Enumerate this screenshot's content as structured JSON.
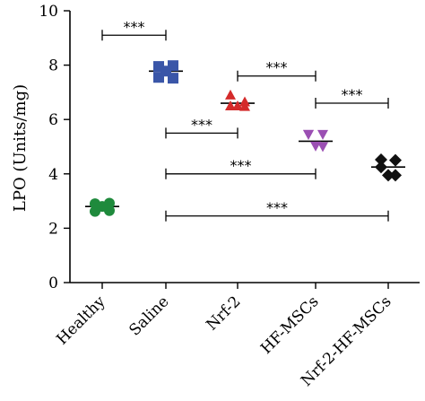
{
  "chart_data": {
    "type": "scatter",
    "ylabel": "LPO (Units/mg)",
    "ylim": [
      0,
      10
    ],
    "yticks": [
      0,
      2,
      4,
      6,
      8,
      10
    ],
    "categories": [
      "Healthy",
      "Saline",
      "Nrf-2",
      "HF-MSCs",
      "Nrf-2-HF-MSCs"
    ],
    "series": [
      {
        "category": "Healthy",
        "marker": "circle",
        "color": "#1f8a3c",
        "mean": 2.8,
        "points": [
          2.9,
          2.92,
          2.62,
          2.65,
          2.8
        ]
      },
      {
        "category": "Saline",
        "marker": "square",
        "color": "#3a56a8",
        "mean": 7.78,
        "points": [
          7.95,
          7.98,
          7.55,
          7.52,
          7.78
        ]
      },
      {
        "category": "Nrf-2",
        "marker": "triangle-up",
        "color": "#d42a2a",
        "mean": 6.6,
        "points": [
          6.9,
          6.65,
          6.5,
          6.48,
          6.5
        ]
      },
      {
        "category": "HF-MSCs",
        "marker": "triangle-down",
        "color": "#9b4fb3",
        "mean": 5.2,
        "points": [
          5.45,
          5.45,
          5.45,
          5.0,
          5.02
        ]
      },
      {
        "category": "Nrf-2-HF-MSCs",
        "marker": "diamond",
        "color": "#111111",
        "mean": 4.25,
        "points": [
          4.52,
          4.5,
          4.25,
          3.95,
          3.95
        ]
      }
    ],
    "comparisons": [
      {
        "from": "Healthy",
        "to": "Saline",
        "y": 9.1,
        "label": "***"
      },
      {
        "from": "Nrf-2",
        "to": "HF-MSCs",
        "y": 7.6,
        "label": "***"
      },
      {
        "from": "HF-MSCs",
        "to": "Nrf-2-HF-MSCs",
        "y": 6.6,
        "label": "***"
      },
      {
        "from": "Saline",
        "to": "Nrf-2",
        "y": 5.5,
        "label": "***"
      },
      {
        "from": "Saline",
        "to": "HF-MSCs",
        "y": 4.0,
        "label": "***"
      },
      {
        "from": "Saline",
        "to": "Nrf-2-HF-MSCs",
        "y": 2.45,
        "label": "***"
      }
    ]
  }
}
